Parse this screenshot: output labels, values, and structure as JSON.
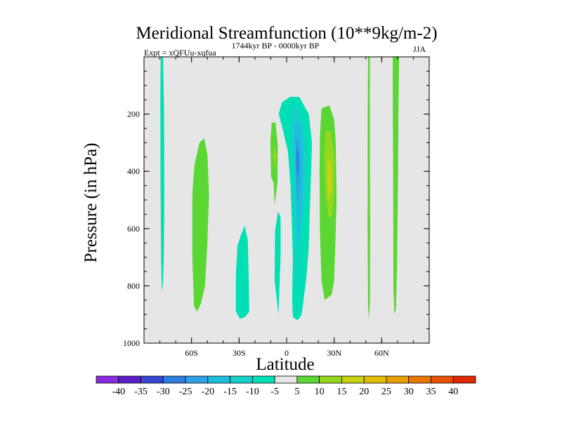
{
  "chart_data": {
    "type": "contour",
    "title": "Meridional Streamfunction (10**9kg/m-2)",
    "left_string": "Expt = xQFUu-xqfua",
    "center_string": "1744kyr BP - 0000kyr BP",
    "right_string": "JJA",
    "xlabel": "Latitude",
    "ylabel": "Pressure (in hPa)",
    "xlim": [
      -90,
      90
    ],
    "ylim": [
      1000,
      0
    ],
    "x_ticks": [
      {
        "value": -60,
        "label": "60S"
      },
      {
        "value": -30,
        "label": "30S"
      },
      {
        "value": 0,
        "label": "0"
      },
      {
        "value": 30,
        "label": "30N"
      },
      {
        "value": 60,
        "label": "60N"
      }
    ],
    "y_ticks": [
      {
        "value": 200,
        "label": "200"
      },
      {
        "value": 400,
        "label": "400"
      },
      {
        "value": 600,
        "label": "600"
      },
      {
        "value": 800,
        "label": "800"
      },
      {
        "value": 1000,
        "label": "1000"
      }
    ],
    "background_fill": "#e6e6e6",
    "colorbar": {
      "levels": [
        -40,
        -35,
        -30,
        -25,
        -20,
        -15,
        -10,
        -5,
        5,
        10,
        15,
        20,
        25,
        30,
        35,
        40
      ],
      "colors": [
        "#8a2be2",
        "#5a1ec8",
        "#3646d2",
        "#2e7de0",
        "#2ea0e6",
        "#1ebede",
        "#14d2c8",
        "#00e0b4",
        "#e6e6e6",
        "#5ad732",
        "#96d71e",
        "#c8d214",
        "#e1be0a",
        "#e6a000",
        "#e67800",
        "#e65000",
        "#e12800"
      ]
    },
    "features": [
      {
        "name": "cell-75S",
        "value_class": -5,
        "points": [
          [
            -79.5,
            0
          ],
          [
            -78,
            0
          ],
          [
            -77.3,
            200
          ],
          [
            -77.2,
            500
          ],
          [
            -77.5,
            700
          ],
          [
            -78.2,
            800
          ],
          [
            -78.8,
            820
          ],
          [
            -79.2,
            720
          ],
          [
            -79.6,
            450
          ],
          [
            -79.7,
            150
          ]
        ]
      },
      {
        "name": "cell-55S",
        "value_class": 5,
        "points": [
          [
            -55,
            300
          ],
          [
            -52,
            285
          ],
          [
            -50,
            340
          ],
          [
            -49,
            480
          ],
          [
            -50,
            650
          ],
          [
            -51.5,
            800
          ],
          [
            -54,
            860
          ],
          [
            -56.5,
            890
          ],
          [
            -58.5,
            870
          ],
          [
            -59.5,
            700
          ],
          [
            -59.5,
            480
          ],
          [
            -58.2,
            380
          ]
        ]
      },
      {
        "name": "cell-27S",
        "value_class": -5,
        "points": [
          [
            -26.5,
            590
          ],
          [
            -24.5,
            640
          ],
          [
            -24,
            760
          ],
          [
            -23.6,
            890
          ],
          [
            -26.5,
            910
          ],
          [
            -29.5,
            915
          ],
          [
            -32,
            890
          ],
          [
            -32,
            760
          ],
          [
            -31,
            660
          ],
          [
            -29,
            625
          ]
        ]
      },
      {
        "name": "cell-8S",
        "value_class": 5,
        "points": [
          [
            -9.5,
            230
          ],
          [
            -7,
            230
          ],
          [
            -5.6,
            310
          ],
          [
            -5.8,
            440
          ],
          [
            -7.6,
            520
          ],
          [
            -8.2,
            440
          ],
          [
            -9.8,
            420
          ],
          [
            -10.2,
            300
          ]
        ]
      },
      {
        "name": "core-8S",
        "value_class": 10,
        "points": [
          [
            -7.7,
            310
          ],
          [
            -6.2,
            345
          ],
          [
            -7.7,
            390
          ],
          [
            -8.5,
            350
          ]
        ]
      },
      {
        "name": "cell-5S",
        "value_class": -5,
        "points": [
          [
            -5.5,
            540
          ],
          [
            -3.8,
            560
          ],
          [
            -3.8,
            700
          ],
          [
            -5.2,
            900
          ],
          [
            -7.6,
            780
          ],
          [
            -7.3,
            610
          ]
        ]
      },
      {
        "name": "hadley-outer",
        "value_class": -5,
        "points": [
          [
            -5,
            200
          ],
          [
            -3,
            160
          ],
          [
            2,
            140
          ],
          [
            8,
            140
          ],
          [
            14,
            200
          ],
          [
            16,
            300
          ],
          [
            15.3,
            420
          ],
          [
            14.5,
            560
          ],
          [
            13.8,
            680
          ],
          [
            12.3,
            780
          ],
          [
            9.5,
            900
          ],
          [
            7,
            920
          ],
          [
            4,
            910
          ],
          [
            3.5,
            850
          ],
          [
            3.9,
            700
          ],
          [
            3.2,
            560
          ],
          [
            2.5,
            450
          ],
          [
            0.8,
            330
          ],
          [
            -3,
            240
          ]
        ]
      },
      {
        "name": "hadley-10",
        "value_class": -10,
        "points": [
          [
            2.5,
            190
          ],
          [
            6.5,
            160
          ],
          [
            11,
            240
          ],
          [
            12.6,
            340
          ],
          [
            12.1,
            480
          ],
          [
            10,
            570
          ],
          [
            8.2,
            680
          ],
          [
            7.5,
            820
          ],
          [
            6.5,
            810
          ],
          [
            6,
            680
          ],
          [
            4.5,
            520
          ],
          [
            4,
            380
          ],
          [
            3,
            260
          ]
        ]
      },
      {
        "name": "hadley-15",
        "value_class": -15,
        "points": [
          [
            5,
            230
          ],
          [
            8.5,
            230
          ],
          [
            10.5,
            330
          ],
          [
            10.2,
            460
          ],
          [
            9,
            560
          ],
          [
            7.8,
            660
          ],
          [
            6.6,
            600
          ],
          [
            5.6,
            440
          ],
          [
            4.8,
            320
          ]
        ]
      },
      {
        "name": "hadley-20",
        "value_class": -20,
        "points": [
          [
            5.8,
            280
          ],
          [
            7.9,
            300
          ],
          [
            8.7,
            380
          ],
          [
            8.1,
            470
          ],
          [
            7,
            520
          ],
          [
            6.1,
            450
          ],
          [
            5.8,
            350
          ]
        ]
      },
      {
        "name": "hadley-core",
        "value_class": -25,
        "points": [
          [
            6.3,
            310
          ],
          [
            7.6,
            340
          ],
          [
            7.6,
            400
          ],
          [
            6.6,
            420
          ],
          [
            6.2,
            370
          ]
        ]
      },
      {
        "name": "cell-25N",
        "value_class": 5,
        "points": [
          [
            22,
            180
          ],
          [
            27,
            170
          ],
          [
            30,
            220
          ],
          [
            31,
            300
          ],
          [
            31.5,
            500
          ],
          [
            30.8,
            640
          ],
          [
            30,
            780
          ],
          [
            28.5,
            830
          ],
          [
            24,
            850
          ],
          [
            22,
            780
          ],
          [
            21,
            600
          ],
          [
            20.8,
            400
          ],
          [
            21,
            280
          ]
        ]
      },
      {
        "name": "cell-25N-10",
        "value_class": 10,
        "points": [
          [
            24.5,
            260
          ],
          [
            28,
            260
          ],
          [
            30,
            350
          ],
          [
            30,
            480
          ],
          [
            28.5,
            560
          ],
          [
            26.5,
            560
          ],
          [
            24.5,
            480
          ],
          [
            24,
            350
          ]
        ]
      },
      {
        "name": "cell-25N-15",
        "value_class": 15,
        "points": [
          [
            25.8,
            360
          ],
          [
            28.2,
            370
          ],
          [
            28.5,
            460
          ],
          [
            26.6,
            500
          ],
          [
            25.6,
            440
          ]
        ]
      },
      {
        "name": "cell-50N",
        "value_class": 5,
        "points": [
          [
            51.4,
            0
          ],
          [
            52.6,
            0
          ],
          [
            52.6,
            300
          ],
          [
            52.7,
            600
          ],
          [
            52.6,
            850
          ],
          [
            52.0,
            920
          ],
          [
            51.4,
            870
          ],
          [
            51.1,
            600
          ],
          [
            51.2,
            200
          ]
        ]
      },
      {
        "name": "cell-68N",
        "value_class": 5,
        "points": [
          [
            67,
            0
          ],
          [
            71,
            0
          ],
          [
            70.6,
            200
          ],
          [
            70.2,
            500
          ],
          [
            69.6,
            750
          ],
          [
            69,
            880
          ],
          [
            68,
            900
          ],
          [
            67.4,
            800
          ],
          [
            67.2,
            400
          ],
          [
            67,
            150
          ]
        ]
      }
    ]
  }
}
